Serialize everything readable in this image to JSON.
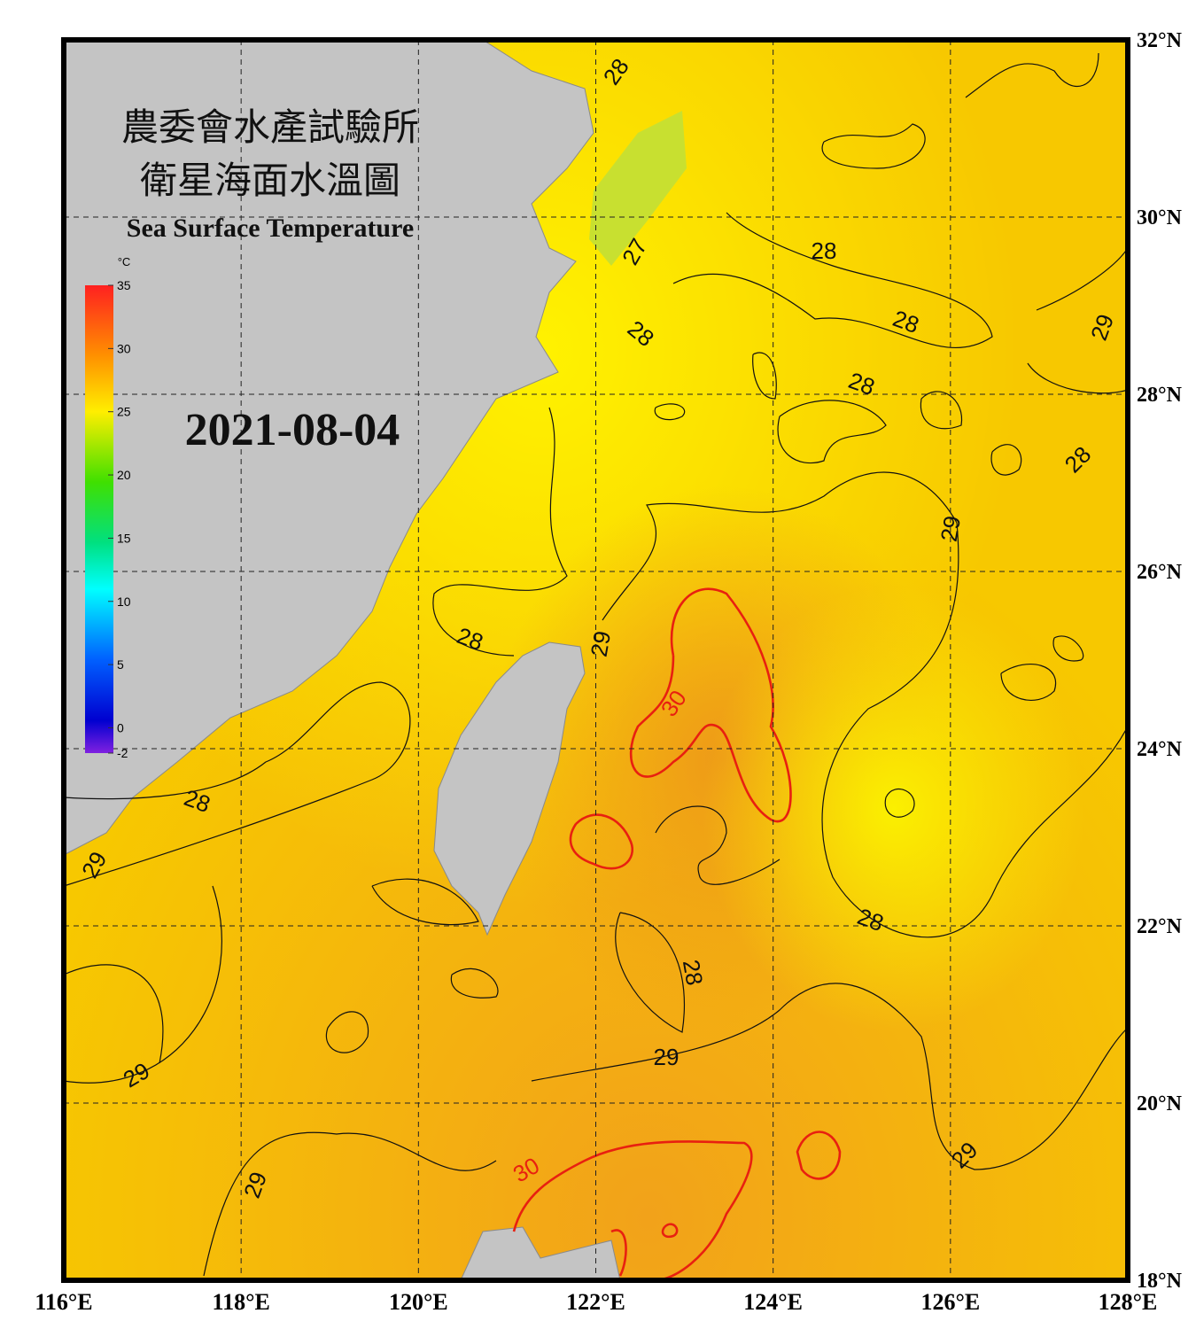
{
  "title_zh_1": "農委會水產試驗所",
  "title_zh_2": "衛星海面水溫圖",
  "title_en": "Sea Surface Temperature",
  "date": "2021-08-04",
  "colorbar": {
    "unit": "°C",
    "lim": [
      -2,
      35
    ],
    "ticks": [
      35,
      30,
      25,
      20,
      15,
      10,
      5,
      0,
      -2
    ]
  },
  "map": {
    "xlim": [
      116,
      128
    ],
    "ylim": [
      18,
      32
    ],
    "xticks": [
      {
        "value": 116,
        "label": "116°E"
      },
      {
        "value": 118,
        "label": "118°E"
      },
      {
        "value": 120,
        "label": "120°E"
      },
      {
        "value": 122,
        "label": "122°E"
      },
      {
        "value": 124,
        "label": "124°E"
      },
      {
        "value": 126,
        "label": "126°E"
      },
      {
        "value": 128,
        "label": "128°E"
      }
    ],
    "yticks": [
      {
        "value": 18,
        "label": "18°N"
      },
      {
        "value": 20,
        "label": "20°N"
      },
      {
        "value": 22,
        "label": "22°N"
      },
      {
        "value": 24,
        "label": "24°N"
      },
      {
        "value": 26,
        "label": "26°N"
      },
      {
        "value": 28,
        "label": "28°N"
      },
      {
        "value": 30,
        "label": "30°N"
      },
      {
        "value": 32,
        "label": "32°N"
      }
    ]
  },
  "contour_labels": [
    28,
    27,
    28,
    28,
    28,
    28,
    28,
    29,
    29,
    29,
    28,
    30,
    28,
    29,
    28,
    28,
    29,
    29,
    29,
    30,
    29
  ]
}
